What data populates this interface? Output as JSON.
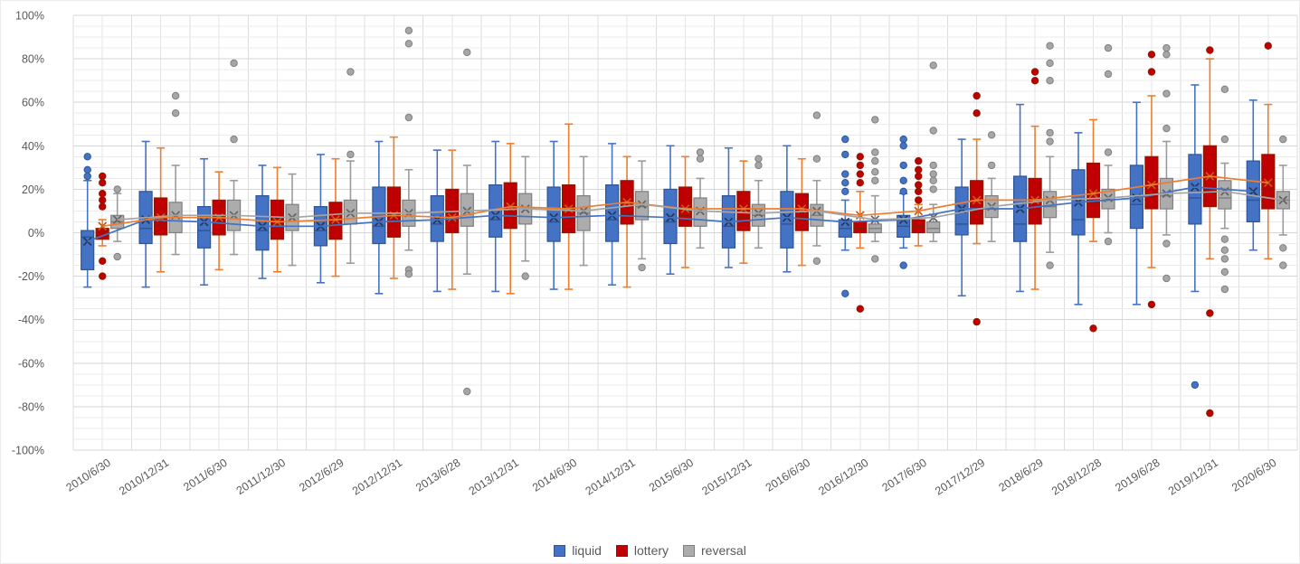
{
  "chart_data": {
    "type": "box",
    "title": "",
    "xlabel": "",
    "ylabel": "",
    "units": "percent",
    "ylim": [
      -100,
      100
    ],
    "y_major_unit": 20,
    "y_minor_unit": 5,
    "grid": "on",
    "legend_position": "bottom",
    "y_tick_labels": [
      "100%",
      "80%",
      "60%",
      "40%",
      "20%",
      "0%",
      "-20%",
      "-40%",
      "-60%",
      "-80%",
      "-100%"
    ],
    "categories": [
      "2010/6/30",
      "2010/12/31",
      "2011/6/30",
      "2011/12/30",
      "2012/6/29",
      "2012/12/31",
      "2013/6/28",
      "2013/12/31",
      "2014/6/30",
      "2014/12/31",
      "2015/6/30",
      "2015/12/31",
      "2016/6/30",
      "2016/12/30",
      "2017/6/30",
      "2017/12/29",
      "2018/6/29",
      "2018/12/28",
      "2019/6/28",
      "2019/12/31",
      "2020/6/30"
    ],
    "stat_order": [
      "min",
      "q1",
      "median",
      "q3",
      "max",
      "mean",
      "outliers"
    ],
    "series": [
      {
        "name": "liquid",
        "box_fill": "#4472C4",
        "box_edge": "#2F5597",
        "whisker_color": "#4472C4",
        "median_color": "#2F5597",
        "mean_marker_color": "#24385B",
        "mean_line_color": "#4472C4",
        "dot_fill": "#4472C4",
        "dot_edge": "#2F5597",
        "data": [
          [
            -25,
            -17,
            -2,
            1,
            24,
            -4,
            [
              35,
              29,
              26
            ]
          ],
          [
            -25,
            -5,
            2,
            19,
            42,
            6,
            []
          ],
          [
            -24,
            -7,
            1,
            12,
            34,
            5,
            []
          ],
          [
            -21,
            -8,
            1,
            17,
            31,
            3,
            []
          ],
          [
            -23,
            -6,
            1,
            12,
            36,
            3,
            []
          ],
          [
            -28,
            -5,
            3,
            21,
            42,
            5,
            []
          ],
          [
            -27,
            -4,
            4,
            17,
            38,
            6,
            []
          ],
          [
            -27,
            -2,
            6,
            22,
            42,
            8,
            []
          ],
          [
            -26,
            -4,
            5,
            21,
            42,
            7,
            []
          ],
          [
            -24,
            -4,
            6,
            22,
            41,
            8,
            []
          ],
          [
            -19,
            -5,
            5,
            20,
            40,
            7,
            []
          ],
          [
            -16,
            -7,
            3,
            17,
            39,
            5,
            []
          ],
          [
            -18,
            -7,
            4,
            19,
            40,
            7,
            []
          ],
          [
            -8,
            -2,
            2,
            6,
            15,
            5,
            [
              43,
              36,
              27,
              23,
              19,
              -28
            ]
          ],
          [
            -7,
            -2,
            3,
            8,
            18,
            6,
            [
              43,
              40,
              31,
              24,
              19,
              -15
            ]
          ],
          [
            -29,
            -1,
            4,
            21,
            43,
            11,
            []
          ],
          [
            -27,
            -4,
            4,
            26,
            59,
            11,
            []
          ],
          [
            -33,
            -1,
            6,
            29,
            46,
            14,
            []
          ],
          [
            -33,
            2,
            13,
            31,
            60,
            16,
            []
          ],
          [
            -27,
            4,
            16,
            36,
            68,
            21,
            [
              -70
            ]
          ],
          [
            -8,
            5,
            15,
            33,
            61,
            19,
            []
          ]
        ]
      },
      {
        "name": "lottery",
        "box_fill": "#C00000",
        "box_edge": "#8B1A00",
        "whisker_color": "#ED7D31",
        "median_color": "#8B1A00",
        "mean_marker_color": "#C55A11",
        "mean_line_color": "#ED7D31",
        "dot_fill": "#C00000",
        "dot_edge": "#8B1A00",
        "data": [
          [
            -6,
            -3,
            0,
            2,
            6,
            3,
            [
              26,
              23,
              18,
              15,
              12,
              -13,
              -20
            ]
          ],
          [
            -18,
            -1,
            4,
            16,
            39,
            7,
            []
          ],
          [
            -17,
            -1,
            5,
            15,
            28,
            7,
            []
          ],
          [
            -18,
            -3,
            4,
            15,
            30,
            5,
            []
          ],
          [
            -20,
            -3,
            4,
            14,
            34,
            6,
            []
          ],
          [
            -21,
            -2,
            5,
            21,
            44,
            8,
            []
          ],
          [
            -26,
            0,
            6,
            20,
            38,
            7,
            []
          ],
          [
            -28,
            2,
            8,
            23,
            41,
            12,
            []
          ],
          [
            -26,
            0,
            7,
            22,
            50,
            11,
            []
          ],
          [
            -25,
            4,
            9,
            24,
            35,
            14,
            []
          ],
          [
            -16,
            3,
            8,
            21,
            35,
            11,
            []
          ],
          [
            -14,
            1,
            7,
            19,
            33,
            11,
            []
          ],
          [
            -15,
            1,
            7,
            18,
            34,
            11,
            []
          ],
          [
            -7,
            0,
            2,
            5,
            19,
            8,
            [
              35,
              31,
              27,
              23,
              -35
            ]
          ],
          [
            -6,
            0,
            3,
            6,
            13,
            10,
            [
              33,
              29,
              26,
              22,
              19,
              15
            ]
          ],
          [
            -5,
            4,
            9,
            24,
            43,
            15,
            [
              63,
              55,
              -41
            ]
          ],
          [
            -26,
            4,
            10,
            25,
            49,
            15,
            [
              74,
              70
            ]
          ],
          [
            -4,
            7,
            14,
            32,
            52,
            18,
            [
              -44
            ]
          ],
          [
            -16,
            11,
            18,
            35,
            63,
            22,
            [
              82,
              74,
              -33
            ]
          ],
          [
            -12,
            12,
            20,
            40,
            80,
            26,
            [
              84,
              -37,
              -83
            ]
          ],
          [
            -12,
            11,
            20,
            36,
            59,
            23,
            [
              86
            ]
          ]
        ]
      },
      {
        "name": "reversal",
        "box_fill": "#ACACAC",
        "box_edge": "#7F7F7F",
        "whisker_color": "#9B9B9B",
        "median_color": "#7F7F7F",
        "mean_marker_color": "#636363",
        "mean_line_color": "#A5A5A5",
        "dot_fill": "#A6A6A6",
        "dot_edge": "#7F7F7F",
        "data": [
          [
            -4,
            2,
            5,
            8,
            18,
            6,
            [
              20,
              -11
            ]
          ],
          [
            -10,
            0,
            8,
            14,
            31,
            8,
            [
              63,
              55
            ]
          ],
          [
            -10,
            1,
            8,
            15,
            24,
            8,
            [
              78,
              43
            ]
          ],
          [
            -15,
            1,
            7,
            13,
            27,
            7,
            []
          ],
          [
            -14,
            4,
            9,
            15,
            33,
            9,
            [
              74,
              36
            ]
          ],
          [
            -8,
            3,
            9,
            15,
            29,
            9,
            [
              93,
              87,
              53,
              -17,
              -19
            ]
          ],
          [
            -19,
            3,
            10,
            18,
            31,
            10,
            [
              83,
              -73
            ]
          ],
          [
            -13,
            4,
            11,
            18,
            35,
            11,
            [
              -20
            ]
          ],
          [
            -15,
            1,
            9,
            17,
            35,
            10,
            []
          ],
          [
            -12,
            6,
            12,
            19,
            33,
            13,
            [
              -16
            ]
          ],
          [
            -7,
            3,
            10,
            16,
            25,
            10,
            [
              37,
              34
            ]
          ],
          [
            -7,
            3,
            8,
            13,
            24,
            9,
            [
              34,
              31
            ]
          ],
          [
            -6,
            3,
            8,
            13,
            24,
            10,
            [
              54,
              34,
              -13
            ]
          ],
          [
            -4,
            0,
            2,
            4,
            17,
            6,
            [
              52,
              37,
              33,
              28,
              24,
              -12
            ]
          ],
          [
            -4,
            0,
            2,
            5,
            13,
            7,
            [
              77,
              47,
              31,
              27,
              24,
              20
            ]
          ],
          [
            -4,
            7,
            11,
            17,
            25,
            12,
            [
              45,
              31
            ]
          ],
          [
            -9,
            7,
            12,
            19,
            35,
            15,
            [
              86,
              78,
              70,
              46,
              42,
              -15
            ]
          ],
          [
            0,
            11,
            15,
            20,
            31,
            16,
            [
              85,
              73,
              37,
              -4
            ]
          ],
          [
            -1,
            11,
            17,
            25,
            42,
            18,
            [
              85,
              82,
              64,
              48,
              -5,
              -21
            ]
          ],
          [
            2,
            11,
            16,
            24,
            32,
            19,
            [
              66,
              43,
              -3,
              -8,
              -12,
              -18,
              -26
            ]
          ],
          [
            -1,
            11,
            15,
            19,
            31,
            15,
            [
              43,
              -7,
              -15
            ]
          ]
        ]
      }
    ],
    "style": {
      "axis_label_color": "#595959",
      "major_grid_color": "#D6D6D6",
      "minor_grid_color": "#EBEBEB",
      "vertical_grid_color": "#E4E4E4"
    }
  }
}
